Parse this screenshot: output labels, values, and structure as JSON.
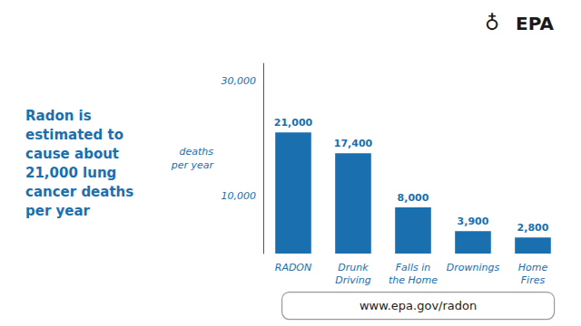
{
  "chart_data": {
    "type": "bar",
    "categories": [
      "RADON",
      "Drunk\nDriving",
      "Falls in\nthe Home",
      "Drownings",
      "Home\nFires"
    ],
    "values": [
      21000,
      17400,
      8000,
      3900,
      2800
    ],
    "value_labels": [
      "21,000",
      "17,400",
      "8,000",
      "3,900",
      "2,800"
    ],
    "data_labels": true,
    "color": "#1a6faf",
    "ylabel": "deaths\nper year",
    "ylim": [
      0,
      33000
    ],
    "yticks": [
      {
        "value": 10000,
        "label": "10,000"
      },
      {
        "value": 30000,
        "label": "30,000"
      }
    ],
    "grid": false,
    "annotations": [
      "Radon is\nestimated to\ncause about\n21,000 lung\ncancer deaths\nper year",
      "♁",
      "EPA",
      "www.epa.gov/radon"
    ]
  }
}
